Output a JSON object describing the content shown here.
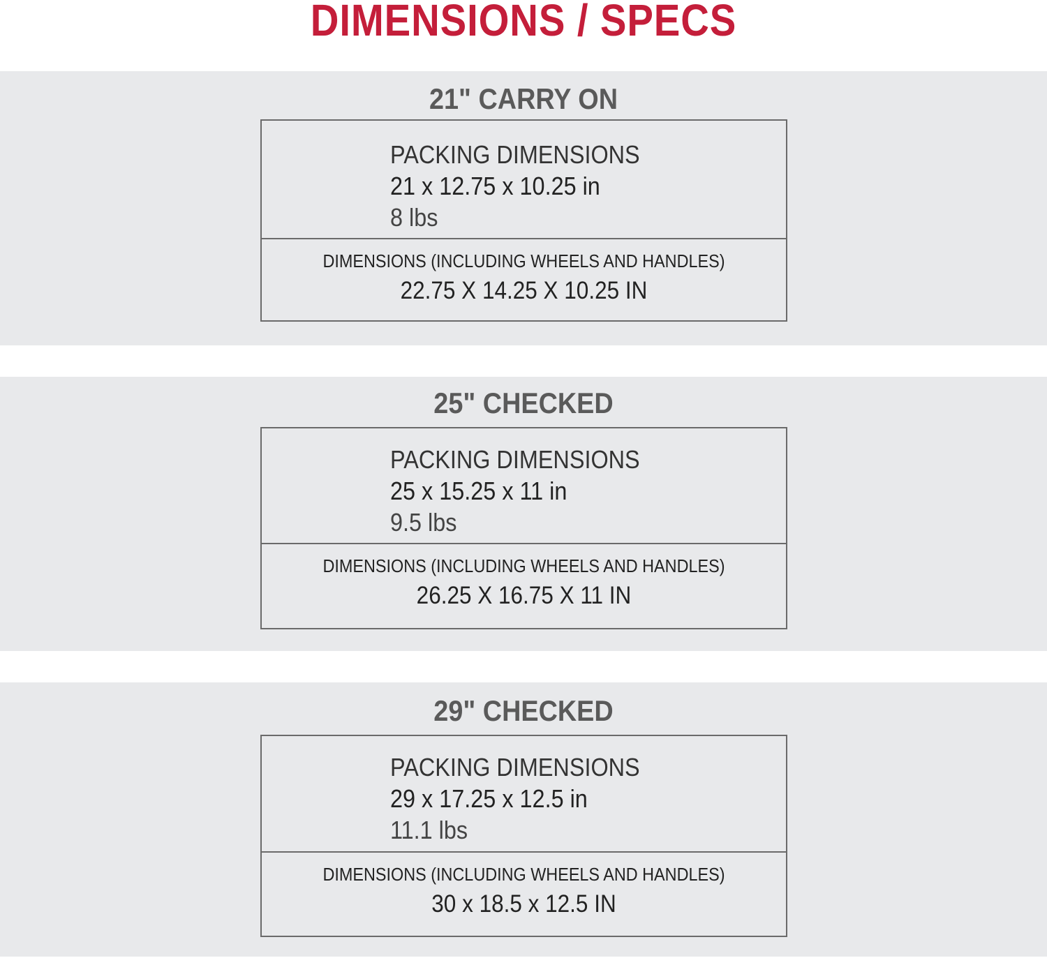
{
  "title": "DIMENSIONS / SPECS",
  "colors": {
    "accent": "#c41e3a",
    "band": "#e8e9eb",
    "heading": "#5a5a5a"
  },
  "sections": [
    {
      "name": "21\" CARRY ON",
      "packing_label": "PACKING DIMENSIONS",
      "packing_dims": "21 x 12.75 x 10.25 in",
      "weight": "8 lbs",
      "full_label": "DIMENSIONS (INCLUDING WHEELS AND HANDLES)",
      "full_dims": "22.75 X 14.25 X 10.25 IN"
    },
    {
      "name": "25\" CHECKED",
      "packing_label": "PACKING DIMENSIONS",
      "packing_dims": "25 x 15.25 x 11 in",
      "weight": "9.5 lbs",
      "full_label": "DIMENSIONS (INCLUDING WHEELS AND HANDLES)",
      "full_dims": "26.25 X 16.75 X 11 IN"
    },
    {
      "name": "29\" CHECKED",
      "packing_label": "PACKING DIMENSIONS",
      "packing_dims": "29 x 17.25 x 12.5 in",
      "weight": "11.1 lbs",
      "full_label": "DIMENSIONS (INCLUDING WHEELS AND HANDLES)",
      "full_dims": "30 x 18.5 x 12.5 IN"
    }
  ]
}
